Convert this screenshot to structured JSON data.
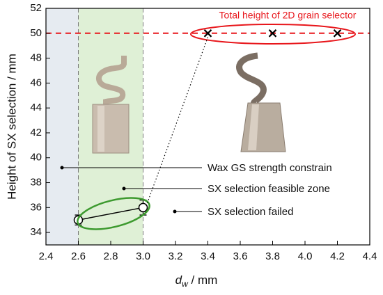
{
  "chart_data": {
    "type": "scatter",
    "y_label": "Height of SX selection / mm",
    "x_label": {
      "symbol": "d",
      "subscript": "w",
      "unit": " / mm"
    },
    "xlim": [
      2.4,
      4.4
    ],
    "xticks": [
      2.4,
      2.6,
      2.8,
      {
        "value": 3.0,
        "label": "3.0"
      },
      3.2,
      3.4,
      3.6,
      3.8,
      {
        "value": 4.0,
        "label": "4.0"
      },
      4.2,
      4.4
    ],
    "ylim": [
      33,
      52
    ],
    "yticks": [
      34,
      36,
      38,
      40,
      42,
      44,
      46,
      48,
      50,
      52
    ],
    "regions": [
      {
        "xlim": [
          2.4,
          2.6
        ],
        "color": "#e6ebf1"
      },
      {
        "xlim": [
          2.6,
          3.0
        ],
        "color": "#dff0d6"
      }
    ],
    "boundary_lines": [
      2.6,
      3.0
    ],
    "reference_line": {
      "value": 50,
      "color": "#e8161b"
    },
    "points": {
      "x": [
        2.6,
        3.0
      ],
      "y": [
        35,
        36
      ],
      "errors": [
        0.4,
        0.6
      ],
      "color": "#000000"
    },
    "crosses": {
      "x": [
        3.4,
        3.8,
        4.2
      ],
      "y": [
        50,
        50,
        50
      ],
      "color": "#000000"
    },
    "annotations": [
      "Total height of 2D grain selector",
      "Wax GS strength constrain",
      "SX selection feasible zone",
      "SX selection failed"
    ]
  }
}
